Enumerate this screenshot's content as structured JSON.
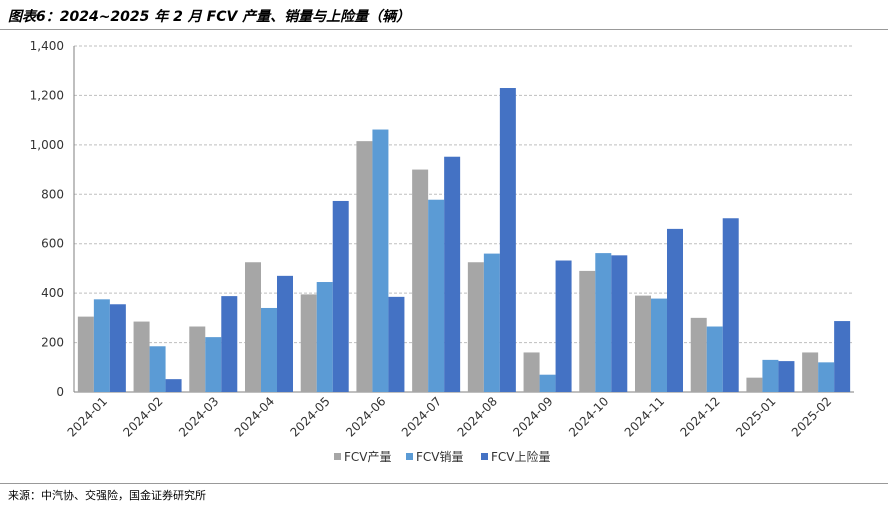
{
  "title": "图表6：2024~2025 年 2 月 FCV 产量、销量与上险量（辆）",
  "source": "来源：中汽协、交强险，国金证券研究所",
  "chart_data": {
    "type": "bar",
    "categories": [
      "2024-01",
      "2024-02",
      "2024-03",
      "2024-04",
      "2024-05",
      "2024-06",
      "2024-07",
      "2024-08",
      "2024-09",
      "2024-10",
      "2024-11",
      "2024-12",
      "2025-01",
      "2025-02"
    ],
    "series": [
      {
        "name": "FCV产量",
        "color": "#a6a6a6",
        "values": [
          305,
          285,
          265,
          525,
          395,
          1015,
          900,
          525,
          160,
          490,
          390,
          300,
          58,
          160
        ]
      },
      {
        "name": "FCV销量",
        "color": "#5b9bd5",
        "values": [
          375,
          185,
          222,
          340,
          445,
          1062,
          778,
          560,
          70,
          562,
          378,
          265,
          130,
          120
        ]
      },
      {
        "name": "FCV上险量",
        "color": "#4472c4",
        "values": [
          355,
          52,
          388,
          470,
          773,
          385,
          952,
          1230,
          532,
          553,
          660,
          703,
          125,
          287
        ]
      }
    ],
    "yticks": [
      "0",
      "200",
      "400",
      "600",
      "800",
      "1,000",
      "1,200",
      "1,400"
    ],
    "ylim": [
      0,
      1400
    ],
    "grid": true,
    "legend_position": "bottom"
  }
}
